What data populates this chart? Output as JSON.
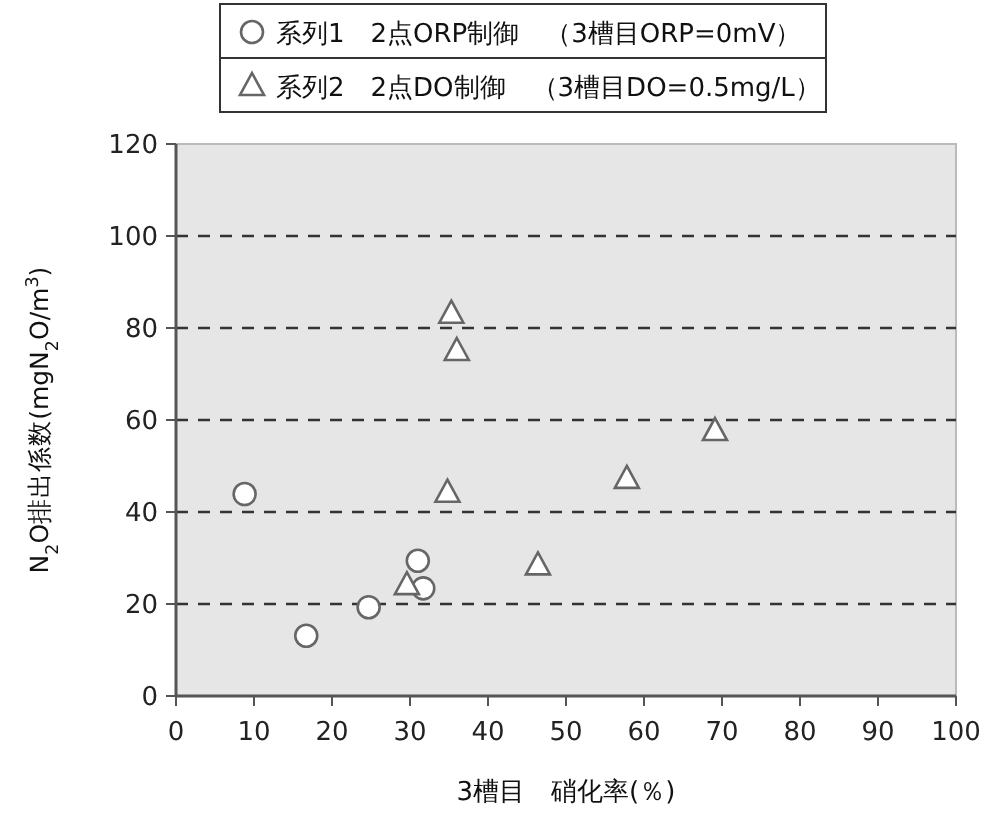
{
  "chart_data": {
    "type": "scatter",
    "xlabel": "3槽目　硝化率(％)",
    "ylabel": "N$_{2}$O排出係数(mgN$_{2}$O/m$^{3}$)",
    "xlim": [
      0,
      100
    ],
    "ylim": [
      0,
      120
    ],
    "xticks": [
      0,
      10,
      20,
      30,
      40,
      50,
      60,
      70,
      80,
      90,
      100
    ],
    "yticks": [
      0,
      20,
      40,
      60,
      80,
      100,
      120
    ],
    "grid": "y",
    "legend": "top",
    "series": [
      {
        "name": "系列1　2点ORP制御　（3槽目ORP=0mV）",
        "color": "#666666",
        "marker": "circle",
        "x": [
          8.8,
          16.7,
          24.7,
          31.0,
          31.7
        ],
        "values": [
          43.9,
          13.1,
          19.3,
          29.4,
          23.4
        ]
      },
      {
        "name": "系列2　2点DO制御　（3槽目DO=0.5mg/L）",
        "color": "#666666",
        "marker": "triangle",
        "x": [
          35.3,
          36.0,
          34.8,
          29.6,
          46.4,
          69.1,
          57.8
        ],
        "values": [
          83.1,
          75.0,
          44.2,
          24.1,
          28.4,
          57.6,
          47.2
        ]
      }
    ]
  }
}
